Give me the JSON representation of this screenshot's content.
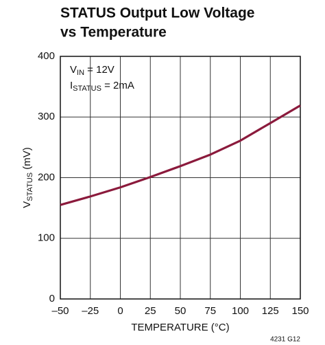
{
  "chart_data": {
    "type": "line",
    "title": [
      "STATUS Output Low Voltage",
      "vs Temperature"
    ],
    "xlabel": "TEMPERATURE (°C)",
    "ylabel": [
      "V",
      "STATUS",
      " (mV)"
    ],
    "annotations": [
      [
        "V",
        "IN",
        " = 12V"
      ],
      [
        "I",
        "STATUS",
        " = 2mA"
      ]
    ],
    "note": "4231 G12",
    "x": [
      -50,
      -25,
      0,
      25,
      50,
      75,
      100,
      125,
      150
    ],
    "series": [
      {
        "name": null,
        "color": "#8b1a3c",
        "values": [
          155,
          169,
          184,
          201,
          219,
          238,
          261,
          290,
          319
        ]
      }
    ],
    "xlim": [
      -50,
      150
    ],
    "xticks": [
      {
        "value": -50,
        "label": "–50"
      },
      {
        "value": -25,
        "label": "–25"
      },
      0,
      25,
      50,
      75,
      100,
      125,
      150
    ],
    "ylim": [
      0,
      400
    ],
    "yticks": [
      0,
      100,
      200,
      300,
      400
    ],
    "grid": true
  }
}
